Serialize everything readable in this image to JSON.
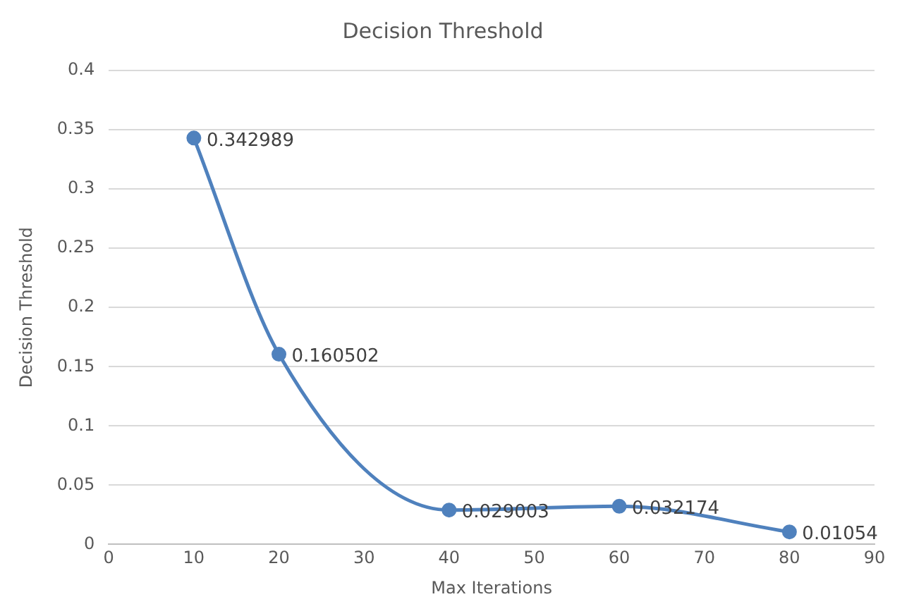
{
  "chart_data": {
    "type": "line",
    "title": "Decision Threshold",
    "xlabel": "Max Iterations",
    "ylabel": "Decision Threshold",
    "x": [
      10,
      20,
      40,
      60,
      80
    ],
    "series": [
      {
        "color": "#4f81bd",
        "values": [
          0.342989,
          0.160502,
          0.029003,
          0.032174,
          0.01054
        ]
      }
    ],
    "xlim": [
      0,
      90
    ],
    "xticks": [
      0,
      10,
      20,
      30,
      40,
      50,
      60,
      70,
      80,
      90
    ],
    "ylim": [
      0,
      0.4
    ],
    "yticks": [
      0,
      0.05,
      0.1,
      0.15,
      0.2,
      0.25,
      0.3,
      0.35,
      0.4
    ],
    "grid": "y",
    "marker": "circle",
    "line_style": "solid",
    "data_labels": true,
    "legend": false
  }
}
